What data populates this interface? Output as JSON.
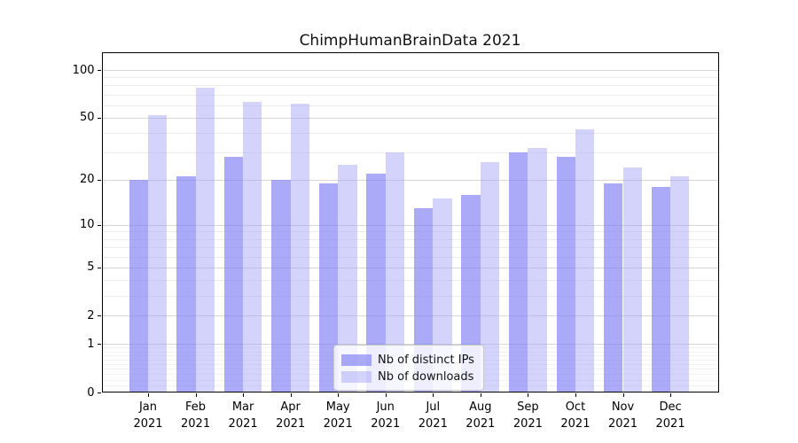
{
  "chart_data": {
    "type": "bar",
    "title": "ChimpHumanBrainData 2021",
    "months": [
      "Jan",
      "Feb",
      "Mar",
      "Apr",
      "May",
      "Jun",
      "Jul",
      "Aug",
      "Sep",
      "Oct",
      "Nov",
      "Dec"
    ],
    "year": "2021",
    "series": [
      {
        "name": "Nb of distinct IPs",
        "color": "rgba(130,130,246,0.68)",
        "values": [
          20,
          21,
          28,
          20,
          19,
          22,
          13,
          16,
          30,
          28,
          19,
          18
        ]
      },
      {
        "name": "Nb of downloads",
        "color": "rgba(160,160,247,0.46)",
        "values": [
          52,
          77,
          63,
          61,
          25,
          30,
          15,
          26,
          32,
          42,
          24,
          21
        ]
      }
    ],
    "xlabel": "",
    "ylabel": "",
    "yscale": "log-like (log10 of 1+value), 0 shown at baseline",
    "ylim": [
      0,
      130
    ],
    "yticks": [
      100,
      50,
      20,
      10,
      5,
      2,
      1,
      0
    ],
    "yticks_minor": [
      90,
      80,
      70,
      60,
      40,
      30,
      9,
      8,
      7,
      6,
      4,
      3,
      0.9,
      0.8,
      0.7,
      0.6,
      0.5,
      0.4,
      0.3,
      0.2,
      0.1
    ],
    "grid": "horizontal, major and minor, light gray",
    "legend_position": "lower center"
  }
}
